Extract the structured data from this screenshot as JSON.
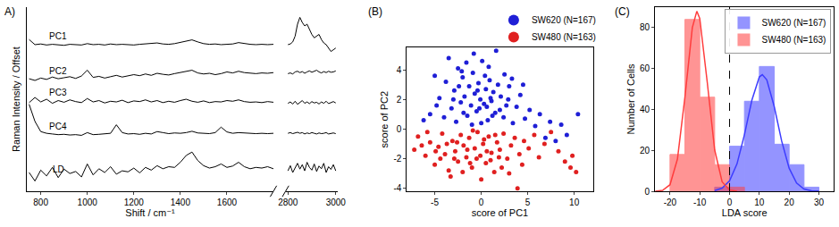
{
  "chart_data": [
    {
      "type": "line",
      "title": "A)",
      "x_label": "Shift / cm⁻¹",
      "y_label": "Raman Intensity / Offset",
      "x": [
        750,
        775,
        800,
        825,
        850,
        875,
        900,
        925,
        950,
        975,
        1000,
        1025,
        1050,
        1075,
        1100,
        1125,
        1150,
        1175,
        1200,
        1225,
        1250,
        1275,
        1300,
        1325,
        1350,
        1375,
        1400,
        1425,
        1450,
        1475,
        1500,
        1525,
        1550,
        1575,
        1600,
        1625,
        1650,
        1675,
        1700,
        1725,
        1750,
        1775,
        1800,
        2800,
        2810,
        2820,
        2830,
        2840,
        2850,
        2860,
        2870,
        2880,
        2890,
        2900,
        2910,
        2920,
        2930,
        2940,
        2950,
        2960,
        2970,
        2980,
        2990,
        3000
      ],
      "xlim": [
        [
          740,
          1800
        ],
        [
          2790,
          3010
        ]
      ],
      "xticks": [
        800,
        1000,
        1200,
        1400,
        1600,
        2800,
        3000
      ],
      "ylim": [
        0,
        5.4
      ],
      "yticks": [],
      "tick_labels": "x",
      "grid": false,
      "series": [
        {
          "name": "PC1",
          "color": "#000000",
          "values": [
            4.45,
            4.3,
            4.32,
            4.29,
            4.31,
            4.3,
            4.28,
            4.31,
            4.3,
            4.29,
            4.33,
            4.3,
            4.31,
            4.29,
            4.32,
            4.3,
            4.31,
            4.3,
            4.29,
            4.31,
            4.32,
            4.33,
            4.35,
            4.32,
            4.31,
            4.33,
            4.36,
            4.4,
            4.44,
            4.38,
            4.33,
            4.31,
            4.32,
            4.3,
            4.31,
            4.32,
            4.36,
            4.33,
            4.31,
            4.3,
            4.31,
            4.3,
            4.31,
            4.3,
            4.32,
            4.38,
            4.55,
            4.9,
            5.1,
            4.95,
            4.85,
            4.9,
            4.75,
            4.6,
            4.5,
            4.55,
            4.6,
            4.45,
            4.35,
            4.3,
            4.2,
            4.1,
            4.15,
            4.2
          ]
        },
        {
          "name": "PC2",
          "color": "#000000",
          "values": [
            3.3,
            3.25,
            3.32,
            3.28,
            3.35,
            3.3,
            3.33,
            3.36,
            3.31,
            3.38,
            3.55,
            3.34,
            3.37,
            3.32,
            3.36,
            3.4,
            3.35,
            3.38,
            3.42,
            3.39,
            3.44,
            3.4,
            3.46,
            3.43,
            3.41,
            3.45,
            3.48,
            3.5,
            3.55,
            3.47,
            3.44,
            3.46,
            3.42,
            3.45,
            3.5,
            3.47,
            3.52,
            3.48,
            3.46,
            3.45,
            3.47,
            3.46,
            3.48,
            3.45,
            3.47,
            3.44,
            3.5,
            3.52,
            3.48,
            3.51,
            3.46,
            3.5,
            3.53,
            3.49,
            3.52,
            3.55,
            3.5,
            3.47,
            3.51,
            3.48,
            3.52,
            3.49,
            3.5,
            3.53
          ]
        },
        {
          "name": "PC3",
          "color": "#000000",
          "values": [
            2.6,
            2.75,
            2.62,
            2.7,
            2.58,
            2.66,
            2.61,
            2.68,
            2.63,
            2.6,
            2.72,
            2.62,
            2.66,
            2.59,
            2.64,
            2.62,
            2.67,
            2.6,
            2.65,
            2.63,
            2.68,
            2.62,
            2.66,
            2.6,
            2.64,
            2.61,
            2.66,
            2.7,
            2.64,
            2.61,
            2.65,
            2.6,
            2.63,
            2.62,
            2.66,
            2.64,
            2.68,
            2.63,
            2.61,
            2.62,
            2.6,
            2.63,
            2.61,
            2.58,
            2.62,
            2.56,
            2.64,
            2.55,
            2.6,
            2.66,
            2.58,
            2.62,
            2.57,
            2.63,
            2.59,
            2.61,
            2.56,
            2.62,
            2.58,
            2.64,
            2.57,
            2.6,
            2.63,
            2.59
          ]
        },
        {
          "name": "PC4",
          "color": "#000000",
          "values": [
            2.55,
            2.05,
            1.75,
            1.7,
            1.68,
            1.66,
            1.67,
            1.65,
            1.66,
            1.64,
            1.72,
            1.66,
            1.67,
            1.68,
            1.7,
            1.95,
            1.72,
            1.68,
            1.69,
            1.67,
            1.7,
            1.68,
            1.75,
            1.72,
            1.69,
            1.71,
            1.7,
            1.72,
            1.76,
            1.71,
            1.7,
            1.69,
            1.72,
            1.88,
            1.74,
            1.7,
            1.72,
            1.71,
            1.7,
            1.69,
            1.7,
            1.69,
            1.7,
            1.7,
            1.72,
            1.69,
            1.71,
            1.73,
            1.7,
            1.72,
            1.68,
            1.71,
            1.69,
            1.72,
            1.7,
            1.68,
            1.71,
            1.69,
            1.7,
            1.72,
            1.68,
            1.7,
            1.71,
            1.69
          ]
        },
        {
          "name": "LD",
          "color": "#000000",
          "values": [
            0.55,
            0.3,
            0.62,
            0.45,
            0.7,
            0.4,
            0.65,
            0.52,
            0.58,
            0.42,
            0.8,
            0.48,
            0.66,
            0.55,
            0.72,
            0.5,
            0.6,
            0.57,
            0.68,
            0.54,
            0.7,
            0.62,
            0.75,
            0.66,
            0.72,
            0.7,
            0.85,
            1.05,
            1.15,
            0.9,
            0.75,
            0.68,
            0.72,
            0.8,
            0.7,
            0.74,
            0.85,
            0.72,
            0.66,
            0.7,
            0.68,
            0.72,
            0.66,
            0.6,
            0.75,
            0.55,
            0.7,
            0.82,
            0.65,
            0.78,
            0.6,
            0.85,
            0.7,
            0.62,
            0.8,
            0.58,
            0.74,
            0.66,
            0.82,
            0.55,
            0.72,
            0.64,
            0.78,
            0.6
          ]
        }
      ]
    },
    {
      "type": "scatter",
      "title": "(B)",
      "x_label": "score of PC1",
      "y_label": "score of PC2",
      "xlim": [
        -8,
        12
      ],
      "xticks": [
        -5,
        0,
        5,
        10
      ],
      "ylim": [
        -4.2,
        5.5
      ],
      "yticks": [
        -4,
        -2,
        0,
        2,
        4
      ],
      "legend": "top",
      "grid": false,
      "series": [
        {
          "name": "SW620 (N=167)",
          "color": "#1f1fd6",
          "marker": "circle",
          "x": [
            -4.5,
            -3.8,
            -3.2,
            -2.9,
            -2.5,
            -2.2,
            -2.0,
            -1.8,
            -1.5,
            -1.3,
            -1.1,
            -0.9,
            -0.7,
            -0.5,
            -0.3,
            -0.1,
            0.1,
            0.3,
            0.5,
            0.7,
            0.9,
            1.1,
            1.3,
            1.5,
            1.8,
            2.1,
            2.4,
            2.7,
            3.0,
            3.4,
            3.8,
            4.2,
            4.7,
            5.2,
            5.8,
            6.3,
            6.9,
            7.4,
            8.0,
            8.6,
            9.2,
            10.4,
            -5.5,
            -5.0,
            -4.0,
            -3.5,
            -2.7,
            -1.6,
            -0.8,
            0.0,
            0.8,
            1.6,
            2.5,
            3.3,
            -6.2,
            -4.8,
            -2.4,
            -1.9,
            -0.4,
            0.4,
            1.2,
            2.0,
            2.9,
            -3.0,
            -1.0,
            0.6,
            4.5,
            -0.2,
            1.0,
            -2.1
          ],
          "values": [
            2.1,
            3.2,
            1.4,
            2.6,
            4.1,
            1.8,
            3.5,
            2.2,
            0.9,
            2.9,
            1.6,
            3.8,
            2.4,
            1.2,
            3.1,
            2.0,
            4.6,
            1.7,
            2.7,
            0.6,
            3.3,
            1.9,
            2.5,
            1.1,
            3.0,
            2.2,
            0.8,
            1.6,
            2.9,
            0.4,
            1.5,
            2.3,
            0.7,
            1.3,
            0.2,
            1.0,
            -0.6,
            0.5,
            -0.8,
            0.3,
            -0.4,
            1.0,
            1.0,
            3.6,
            0.8,
            4.8,
            0.5,
            4.5,
            5.1,
            0.4,
            4.2,
            5.3,
            3.7,
            3.4,
            0.6,
            1.6,
            2.9,
            1.1,
            2.6,
            3.6,
            0.9,
            1.3,
            2.0,
            2.0,
            0.3,
            1.5,
            3.0,
            1.4,
            2.1,
            3.9
          ]
        },
        {
          "name": "SW480 (N=163)",
          "color": "#e02020",
          "marker": "circle",
          "x": [
            -6.8,
            -6.0,
            -5.5,
            -5.0,
            -4.6,
            -4.2,
            -3.9,
            -3.5,
            -3.1,
            -2.8,
            -2.5,
            -2.2,
            -1.9,
            -1.6,
            -1.3,
            -1.0,
            -0.7,
            -0.4,
            -0.1,
            0.2,
            0.5,
            0.8,
            1.1,
            1.4,
            1.7,
            2.0,
            2.4,
            2.8,
            3.2,
            3.6,
            4.1,
            4.6,
            5.1,
            5.7,
            6.2,
            6.8,
            7.5,
            8.3,
            9.0,
            9.6,
            10.2,
            9.8,
            -7.2,
            -5.8,
            -4.4,
            -3.3,
            -2.0,
            -0.9,
            0.0,
            1.0,
            2.2,
            3.0,
            -3.7,
            -2.6,
            -1.5,
            -0.5,
            0.6,
            1.9,
            -4.9,
            -1.2,
            0.3,
            4.4,
            3.9,
            -6.4,
            -2.9,
            1.5
          ],
          "values": [
            -0.5,
            -1.8,
            -0.9,
            -2.4,
            -1.2,
            -0.3,
            -1.7,
            -2.8,
            -0.8,
            -1.5,
            -2.2,
            -0.4,
            -1.1,
            -1.9,
            -0.6,
            -2.6,
            -1.3,
            -0.2,
            -1.8,
            -1.0,
            -2.3,
            -0.5,
            -1.6,
            -2.9,
            -0.9,
            -1.4,
            -0.3,
            -2.0,
            -1.1,
            -0.6,
            -1.7,
            -0.8,
            -1.3,
            -0.4,
            -1.9,
            -1.0,
            -0.2,
            -1.5,
            -2.2,
            -2.6,
            -2.9,
            -1.8,
            -1.4,
            -0.2,
            -2.0,
            -3.2,
            -2.9,
            -0.1,
            -3.4,
            -2.1,
            -2.6,
            -3.0,
            -1.0,
            -0.9,
            -1.4,
            -2.0,
            -1.5,
            -1.9,
            -1.5,
            -2.3,
            -0.7,
            -2.4,
            -4.0,
            -1.1,
            -2.0,
            -0.4
          ]
        }
      ]
    },
    {
      "type": "histogram",
      "title": "(C)",
      "x_label": "LDA score",
      "y_label": "Number of Cells",
      "xlim": [
        -25,
        35
      ],
      "xticks": [
        -20,
        -10,
        0,
        10,
        20,
        30
      ],
      "ylim": [
        0,
        90
      ],
      "yticks": [
        0,
        20,
        40,
        60,
        80
      ],
      "legend": "upper right",
      "grid": false,
      "threshold": {
        "value": 0,
        "line_style": "dash"
      },
      "series": [
        {
          "name": "SW620 (N=167)",
          "color": "#3d3dff",
          "bins": [
            -5,
            0,
            5,
            10,
            15,
            20,
            25,
            30
          ],
          "counts": [
            2,
            22,
            44,
            61,
            23,
            13,
            2
          ],
          "fit": {
            "x": [
              -5,
              -2.5,
              0,
              2.5,
              5,
              7.5,
              10,
              11,
              12.5,
              15,
              17.5,
              20,
              22.5,
              25,
              27.5,
              30
            ],
            "values": [
              0.3,
              1.5,
              5.1,
              13.4,
              27.7,
              44.6,
              55.9,
              57,
              54.5,
              41.4,
              24.5,
              11.3,
              4.0,
              1.1,
              0.2,
              0.1
            ],
            "line_style": "solid"
          }
        },
        {
          "name": "SW480 (N=163)",
          "color": "#ff3d3d",
          "bins": [
            -20,
            -15,
            -10,
            -5,
            0,
            5
          ],
          "counts": [
            18,
            84,
            46,
            13,
            2
          ],
          "fit": {
            "x": [
              -25,
              -22.5,
              -20,
              -17.5,
              -15,
              -12.5,
              -11,
              -10,
              -7.5,
              -5,
              -2.5,
              0,
              2.5
            ],
            "values": [
              0.03,
              0.4,
              3.2,
              15.7,
              45.8,
              80,
              88,
              84.5,
              53.4,
              20.2,
              4.6,
              0.6,
              0.05
            ],
            "line_style": "solid"
          }
        }
      ]
    }
  ]
}
